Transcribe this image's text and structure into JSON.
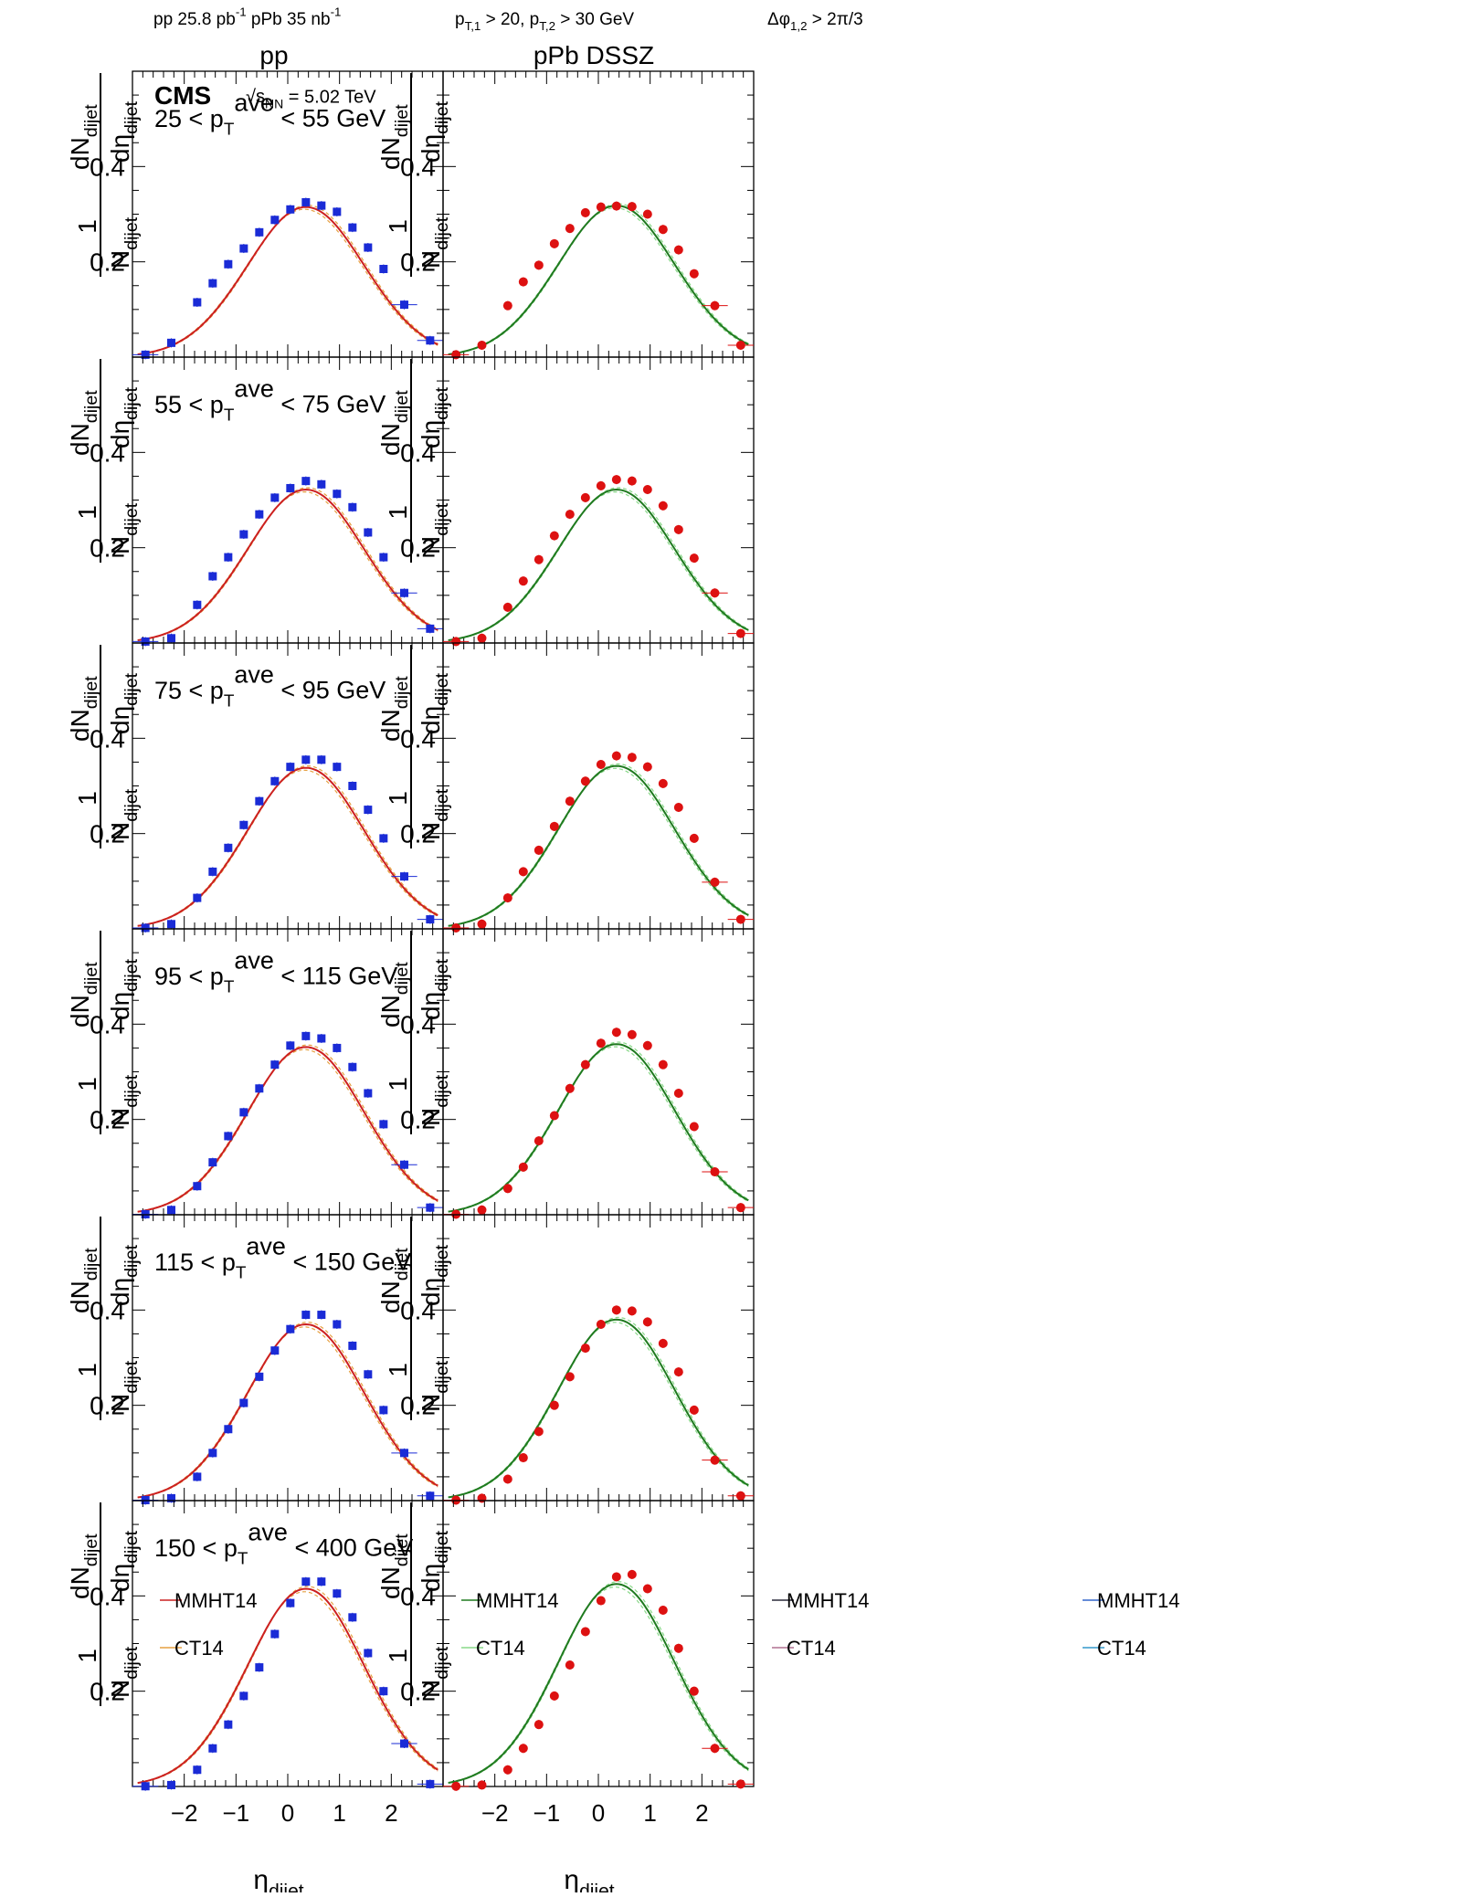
{
  "header": {
    "lumi_pp": "pp 25.8 pb",
    "lumi_pp_sup": "-1",
    "lumi_ppb": " pPb 35 nb",
    "lumi_ppb_sup": "-1",
    "pt_cut_a": "p",
    "pt_cut_a_sub": "T,1",
    "pt_cut_b": " > 20, p",
    "pt_cut_b_sub": "T,2",
    "pt_cut_c": " > 30 GeV",
    "dphi_a": "Δφ",
    "dphi_sub": "1,2",
    "dphi_b": " > 2π/3"
  },
  "column_titles": [
    "pp",
    "pPb DSSZ"
  ],
  "cms_label": "CMS",
  "energy": {
    "sqrt": "√",
    "s": "s",
    "sub": "NN",
    "value": " = 5.02 TeV"
  },
  "xlabel": {
    "main": "η",
    "sub": "dijet"
  },
  "ylabel": {
    "num_top": "1",
    "den_top": "N",
    "den_sub": "dijet",
    "dN": "dN",
    "dN_sub": "dijet",
    "deta": "dη",
    "deta_sub": "dijet"
  },
  "yticks": [
    "0.2",
    "0.4"
  ],
  "xticks": [
    "−2",
    "−1",
    "0",
    "1",
    "2"
  ],
  "legend": {
    "groups": [
      {
        "items": [
          "MMHT14",
          "CT14"
        ],
        "colors": [
          "#cc2020",
          "#e6a040"
        ]
      },
      {
        "items": [
          "MMHT14",
          "CT14"
        ],
        "colors": [
          "#1f7a1f",
          "#88d888"
        ]
      },
      {
        "items": [
          "MMHT14",
          "CT14"
        ],
        "colors": [
          "#2a2a3a",
          "#b07090"
        ]
      },
      {
        "items": [
          "MMHT14",
          "CT14"
        ],
        "colors": [
          "#3366cc",
          "#3399cc"
        ]
      }
    ]
  },
  "colors": {
    "pp_marker": "#1a2bd6",
    "ppb_marker": "#dd1111",
    "pp_curve": "#cc2020",
    "pp_band": "#e6a040",
    "ppb_curve": "#1f7a1f",
    "ppb_band": "#88d888"
  },
  "chart_data": {
    "type": "scatter",
    "xlabel": "η_dijet",
    "ylabel": "1/N_dijet dN_dijet/dη_dijet",
    "xlim": [
      -3.0,
      3.0
    ],
    "ylim": [
      0,
      0.6
    ],
    "grid": false,
    "legend_placement": "bottom panel, left",
    "x": [
      -2.75,
      -2.25,
      -1.75,
      -1.45,
      -1.15,
      -0.85,
      -0.55,
      -0.25,
      0.05,
      0.35,
      0.65,
      0.95,
      1.25,
      1.55,
      1.85,
      2.25,
      2.75
    ],
    "panels": [
      {
        "label_a": "25 < p",
        "label_sub": "T",
        "label_sup": "ave",
        "label_b": " < 55 GeV",
        "pp": [
          0.005,
          0.03,
          0.115,
          0.155,
          0.195,
          0.228,
          0.262,
          0.288,
          0.31,
          0.325,
          0.318,
          0.305,
          0.272,
          0.23,
          0.185,
          0.11,
          0.035
        ],
        "ppb": [
          0.005,
          0.025,
          0.108,
          0.158,
          0.193,
          0.238,
          0.27,
          0.303,
          0.315,
          0.317,
          0.316,
          0.3,
          0.268,
          0.225,
          0.175,
          0.108,
          0.025
        ],
        "pp_peak": 0.315,
        "ppb_peak": 0.318
      },
      {
        "label_a": "55 < p",
        "label_sub": "T",
        "label_sup": "ave",
        "label_b": " < 75 GeV",
        "pp": [
          0.003,
          0.01,
          0.08,
          0.14,
          0.18,
          0.228,
          0.27,
          0.305,
          0.325,
          0.34,
          0.333,
          0.313,
          0.285,
          0.232,
          0.18,
          0.105,
          0.03
        ],
        "ppb": [
          0.003,
          0.01,
          0.075,
          0.13,
          0.175,
          0.225,
          0.27,
          0.305,
          0.33,
          0.343,
          0.34,
          0.322,
          0.288,
          0.238,
          0.178,
          0.105,
          0.02
        ],
        "pp_peak": 0.322,
        "ppb_peak": 0.322
      },
      {
        "label_a": "75 < p",
        "label_sub": "T",
        "label_sup": "ave",
        "label_b": " < 95 GeV",
        "pp": [
          0.002,
          0.01,
          0.065,
          0.12,
          0.17,
          0.218,
          0.268,
          0.31,
          0.34,
          0.355,
          0.355,
          0.34,
          0.3,
          0.25,
          0.19,
          0.11,
          0.02
        ],
        "ppb": [
          0.002,
          0.01,
          0.065,
          0.12,
          0.165,
          0.215,
          0.268,
          0.31,
          0.345,
          0.363,
          0.36,
          0.34,
          0.305,
          0.255,
          0.19,
          0.098,
          0.02
        ],
        "pp_peak": 0.338,
        "ppb_peak": 0.342
      },
      {
        "label_a": "95 < p",
        "label_sub": "T",
        "label_sup": "ave",
        "label_b": " < 115 GeV",
        "pp": [
          0.001,
          0.01,
          0.06,
          0.11,
          0.165,
          0.215,
          0.265,
          0.315,
          0.355,
          0.375,
          0.37,
          0.35,
          0.31,
          0.255,
          0.19,
          0.105,
          0.015
        ],
        "ppb": [
          0.001,
          0.01,
          0.055,
          0.1,
          0.155,
          0.208,
          0.265,
          0.315,
          0.36,
          0.383,
          0.378,
          0.355,
          0.315,
          0.255,
          0.185,
          0.09,
          0.015
        ],
        "pp_peak": 0.352,
        "ppb_peak": 0.358
      },
      {
        "label_a": "115 < p",
        "label_sub": "T",
        "label_sup": "ave",
        "label_b": " < 150 GeV",
        "pp": [
          0.001,
          0.005,
          0.05,
          0.1,
          0.15,
          0.205,
          0.26,
          0.315,
          0.36,
          0.39,
          0.39,
          0.37,
          0.325,
          0.265,
          0.19,
          0.1,
          0.01
        ],
        "ppb": [
          0.001,
          0.005,
          0.045,
          0.09,
          0.145,
          0.2,
          0.26,
          0.32,
          0.37,
          0.4,
          0.398,
          0.375,
          0.33,
          0.27,
          0.19,
          0.085,
          0.01
        ],
        "pp_peak": 0.37,
        "ppb_peak": 0.38
      },
      {
        "label_a": "150 < p",
        "label_sub": "T",
        "label_sup": "ave",
        "label_b": " < 400 GeV",
        "pp": [
          0.0005,
          0.003,
          0.035,
          0.08,
          0.13,
          0.19,
          0.25,
          0.32,
          0.385,
          0.43,
          0.43,
          0.405,
          0.355,
          0.28,
          0.2,
          0.09,
          0.005
        ],
        "ppb": [
          0.0005,
          0.003,
          0.035,
          0.08,
          0.13,
          0.19,
          0.255,
          0.325,
          0.39,
          0.44,
          0.445,
          0.415,
          0.37,
          0.29,
          0.2,
          0.08,
          0.005
        ],
        "pp_peak": 0.415,
        "ppb_peak": 0.425
      }
    ]
  }
}
